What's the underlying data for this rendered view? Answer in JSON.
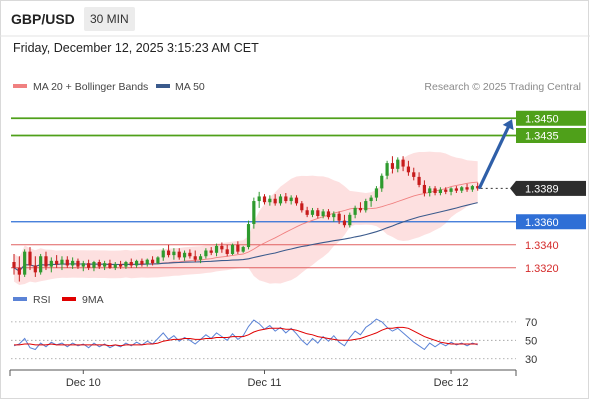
{
  "header": {
    "symbol": "GBP/USD",
    "timeframe": "30 MIN",
    "datetime": "Friday, December 12, 2025 3:15:23 AM CET"
  },
  "credit": "Research © 2025 Trading Central",
  "colors": {
    "bullish_candle": "#2e9a2e",
    "bearish_candle": "#c71c1c",
    "bollinger_fill": "#fcd6d6",
    "ma20": "#f08080",
    "ma50": "#3a5a8c",
    "resistance": "#4fa01a",
    "pivot": "#2f6fd6",
    "support": "#e06060",
    "rsi": "#5b83d6",
    "rsi_ma": "#e00000",
    "forecast_arrow": "#2f5fa8",
    "current_price_tag": "#2d2d2d"
  },
  "chart_data": [
    {
      "type": "candlestick",
      "title": "GBP/USD 30 MIN",
      "legend": [
        {
          "name": "MA 20 + Bollinger Bands",
          "color": "#f08080"
        },
        {
          "name": "MA 50",
          "color": "#3a5a8c"
        }
      ],
      "legend_position": "top-left",
      "grid": false,
      "x_tick_labels": [
        "Dec 10",
        "Dec 11",
        "Dec 12"
      ],
      "ylim": [
        1.3305,
        1.3465
      ],
      "current_price": 1.3389,
      "levels": [
        {
          "label": "1.3450",
          "value": 1.345,
          "role": "resistance"
        },
        {
          "label": "1.3435",
          "value": 1.3435,
          "role": "resistance"
        },
        {
          "label": "1.3360",
          "value": 1.336,
          "role": "pivot"
        },
        {
          "label": "1.3340",
          "value": 1.334,
          "role": "support"
        },
        {
          "label": "1.3320",
          "value": 1.332,
          "role": "support"
        }
      ],
      "forecast_target": 1.345,
      "candles": [
        [
          1.3325,
          1.3332,
          1.3314,
          1.332
        ],
        [
          1.332,
          1.333,
          1.3308,
          1.3314
        ],
        [
          1.3314,
          1.3336,
          1.3312,
          1.3334
        ],
        [
          1.3334,
          1.3338,
          1.3318,
          1.3322
        ],
        [
          1.3322,
          1.333,
          1.3312,
          1.3316
        ],
        [
          1.3316,
          1.3332,
          1.3314,
          1.333
        ],
        [
          1.333,
          1.3334,
          1.3318,
          1.3321
        ],
        [
          1.3321,
          1.3329,
          1.3316,
          1.3326
        ],
        [
          1.3326,
          1.3331,
          1.332,
          1.3323
        ],
        [
          1.3323,
          1.333,
          1.3318,
          1.3327
        ],
        [
          1.3327,
          1.333,
          1.332,
          1.3322
        ],
        [
          1.3322,
          1.3329,
          1.3319,
          1.3326
        ],
        [
          1.3326,
          1.3328,
          1.3319,
          1.3321
        ],
        [
          1.3321,
          1.3326,
          1.3317,
          1.3324
        ],
        [
          1.3324,
          1.3327,
          1.3318,
          1.332
        ],
        [
          1.332,
          1.3326,
          1.3317,
          1.3325
        ],
        [
          1.3325,
          1.3327,
          1.3319,
          1.3321
        ],
        [
          1.3321,
          1.3326,
          1.3318,
          1.3324
        ],
        [
          1.3324,
          1.3327,
          1.3319,
          1.332
        ],
        [
          1.332,
          1.3325,
          1.3318,
          1.3323
        ],
        [
          1.3323,
          1.3326,
          1.3319,
          1.3321
        ],
        [
          1.3321,
          1.3326,
          1.3319,
          1.3325
        ],
        [
          1.3325,
          1.3328,
          1.332,
          1.3322
        ],
        [
          1.3322,
          1.3327,
          1.332,
          1.3326
        ],
        [
          1.3326,
          1.3328,
          1.3321,
          1.3323
        ],
        [
          1.3323,
          1.3328,
          1.3321,
          1.3327
        ],
        [
          1.3327,
          1.333,
          1.3322,
          1.3324
        ],
        [
          1.3324,
          1.333,
          1.3323,
          1.3329
        ],
        [
          1.3329,
          1.3337,
          1.3326,
          1.3335
        ],
        [
          1.3335,
          1.334,
          1.3329,
          1.3331
        ],
        [
          1.3331,
          1.3337,
          1.3327,
          1.3334
        ],
        [
          1.3334,
          1.3337,
          1.3327,
          1.3329
        ],
        [
          1.3329,
          1.3335,
          1.3326,
          1.3333
        ],
        [
          1.3333,
          1.3336,
          1.3328,
          1.333
        ],
        [
          1.333,
          1.3335,
          1.3325,
          1.3327
        ],
        [
          1.3327,
          1.3332,
          1.3324,
          1.333
        ],
        [
          1.333,
          1.3337,
          1.3328,
          1.3335
        ],
        [
          1.3335,
          1.3338,
          1.3331,
          1.3333
        ],
        [
          1.3333,
          1.3341,
          1.333,
          1.3339
        ],
        [
          1.3339,
          1.3342,
          1.3333,
          1.3336
        ],
        [
          1.3336,
          1.334,
          1.333,
          1.3332
        ],
        [
          1.3332,
          1.3341,
          1.3331,
          1.334
        ],
        [
          1.334,
          1.3343,
          1.3332,
          1.3334
        ],
        [
          1.3334,
          1.3339,
          1.3333,
          1.3338
        ],
        [
          1.3338,
          1.3361,
          1.3336,
          1.3358
        ],
        [
          1.3358,
          1.3381,
          1.3354,
          1.3378
        ],
        [
          1.3378,
          1.3386,
          1.3372,
          1.3382
        ],
        [
          1.3382,
          1.3384,
          1.3375,
          1.3377
        ],
        [
          1.3377,
          1.3383,
          1.3374,
          1.338
        ],
        [
          1.338,
          1.3384,
          1.3374,
          1.3376
        ],
        [
          1.3376,
          1.3384,
          1.3374,
          1.3382
        ],
        [
          1.3382,
          1.3385,
          1.3376,
          1.3378
        ],
        [
          1.3378,
          1.3383,
          1.3375,
          1.3381
        ],
        [
          1.3381,
          1.3383,
          1.3374,
          1.3376
        ],
        [
          1.3376,
          1.3378,
          1.3368,
          1.337
        ],
        [
          1.337,
          1.3373,
          1.3364,
          1.3366
        ],
        [
          1.3366,
          1.3372,
          1.3364,
          1.337
        ],
        [
          1.337,
          1.3372,
          1.3363,
          1.3365
        ],
        [
          1.3365,
          1.3371,
          1.3363,
          1.3369
        ],
        [
          1.3369,
          1.3371,
          1.3362,
          1.3364
        ],
        [
          1.3364,
          1.3369,
          1.336,
          1.3367
        ],
        [
          1.3367,
          1.3369,
          1.3358,
          1.3361
        ],
        [
          1.3361,
          1.3366,
          1.3355,
          1.3357
        ],
        [
          1.3357,
          1.3368,
          1.3355,
          1.3366
        ],
        [
          1.3366,
          1.3374,
          1.3363,
          1.3372
        ],
        [
          1.3372,
          1.3377,
          1.3368,
          1.337
        ],
        [
          1.337,
          1.338,
          1.3368,
          1.3378
        ],
        [
          1.3378,
          1.3383,
          1.3373,
          1.3381
        ],
        [
          1.3381,
          1.3391,
          1.3378,
          1.3389
        ],
        [
          1.3389,
          1.3402,
          1.3386,
          1.34
        ],
        [
          1.34,
          1.3413,
          1.3397,
          1.3411
        ],
        [
          1.3411,
          1.3417,
          1.3402,
          1.3406
        ],
        [
          1.3406,
          1.3416,
          1.3403,
          1.3414
        ],
        [
          1.3414,
          1.3417,
          1.3404,
          1.3408
        ],
        [
          1.3408,
          1.3413,
          1.34,
          1.3403
        ],
        [
          1.3403,
          1.3407,
          1.3396,
          1.3399
        ],
        [
          1.3399,
          1.3403,
          1.339,
          1.3392
        ],
        [
          1.3392,
          1.3396,
          1.3382,
          1.3385
        ],
        [
          1.3385,
          1.3391,
          1.3382,
          1.3389
        ],
        [
          1.3389,
          1.3391,
          1.3383,
          1.3385
        ],
        [
          1.3385,
          1.339,
          1.3383,
          1.3388
        ],
        [
          1.3388,
          1.339,
          1.3384,
          1.3386
        ],
        [
          1.3386,
          1.339,
          1.3383,
          1.3389
        ],
        [
          1.3389,
          1.3391,
          1.3385,
          1.3387
        ],
        [
          1.3387,
          1.3391,
          1.3385,
          1.339
        ],
        [
          1.339,
          1.3393,
          1.3386,
          1.3388
        ],
        [
          1.3388,
          1.3392,
          1.3386,
          1.3391
        ],
        [
          1.3391,
          1.3394,
          1.3387,
          1.3389
        ]
      ]
    },
    {
      "type": "line",
      "title": "RSI",
      "legend": [
        {
          "name": "RSI",
          "color": "#5b83d6"
        },
        {
          "name": "9MA",
          "color": "#e00000"
        }
      ],
      "legend_position": "top-left",
      "ylim": [
        20,
        85
      ],
      "y_ticks": [
        70,
        50,
        30
      ],
      "series": [
        {
          "name": "RSI",
          "values": [
            44,
            46,
            52,
            42,
            40,
            47,
            43,
            48,
            45,
            47,
            43,
            47,
            44,
            46,
            42,
            47,
            43,
            46,
            42,
            45,
            43,
            47,
            44,
            48,
            45,
            49,
            46,
            52,
            58,
            51,
            55,
            49,
            53,
            50,
            46,
            51,
            56,
            52,
            58,
            54,
            50,
            57,
            51,
            55,
            65,
            72,
            68,
            62,
            66,
            60,
            64,
            58,
            63,
            57,
            50,
            45,
            52,
            47,
            54,
            49,
            55,
            48,
            44,
            53,
            60,
            56,
            64,
            68,
            73,
            70,
            64,
            60,
            63,
            58,
            53,
            48,
            44,
            40,
            47,
            43,
            47,
            44,
            48,
            45,
            47,
            44,
            47,
            45
          ]
        },
        {
          "name": "9MA",
          "values": [
            45,
            45,
            46,
            46,
            45,
            45,
            45,
            46,
            45,
            45,
            45,
            45,
            45,
            45,
            45,
            45,
            45,
            45,
            44,
            45,
            44,
            45,
            45,
            45,
            45,
            46,
            46,
            47,
            49,
            50,
            51,
            51,
            52,
            52,
            51,
            51,
            52,
            52,
            53,
            53,
            53,
            54,
            54,
            54,
            56,
            59,
            61,
            62,
            63,
            63,
            63,
            62,
            62,
            61,
            59,
            57,
            56,
            54,
            53,
            52,
            51,
            50,
            50,
            50,
            51,
            52,
            54,
            56,
            58,
            61,
            63,
            63,
            64,
            64,
            63,
            60,
            57,
            54,
            52,
            50,
            48,
            47,
            46,
            46,
            46,
            46,
            46,
            46
          ]
        }
      ]
    }
  ]
}
